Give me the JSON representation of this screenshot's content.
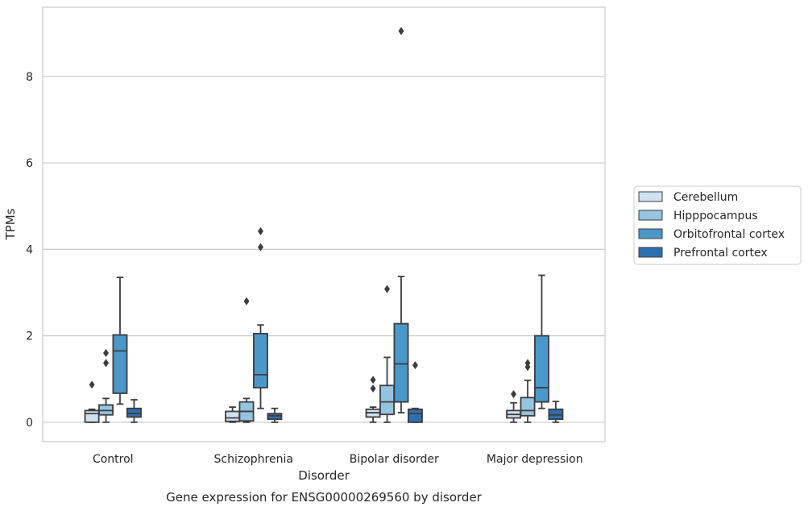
{
  "chart_data": {
    "type": "box",
    "caption": "Gene expression for ENSG00000269560 by disorder",
    "xlabel": "Disorder",
    "ylabel": "TPMs",
    "ylim": [
      -0.45,
      9.6
    ],
    "yticks": [
      0,
      2,
      4,
      6,
      8
    ],
    "grid": "horizontal",
    "legend_position": "right",
    "categories": [
      "Control",
      "Schizophrenia",
      "Bipolar disorder",
      "Major depression"
    ],
    "series": [
      {
        "name": "Cerebellum",
        "color": "#d0e1f2",
        "boxes": [
          {
            "whislo": 0.0,
            "q1": 0.0,
            "med": 0.2,
            "q3": 0.27,
            "whishi": 0.3,
            "fliers": [
              0.87
            ]
          },
          {
            "whislo": 0.0,
            "q1": 0.02,
            "med": 0.1,
            "q3": 0.25,
            "whishi": 0.35,
            "fliers": []
          },
          {
            "whislo": 0.0,
            "q1": 0.12,
            "med": 0.22,
            "q3": 0.3,
            "whishi": 0.35,
            "fliers": [
              0.78,
              0.98
            ]
          },
          {
            "whislo": 0.0,
            "q1": 0.1,
            "med": 0.18,
            "q3": 0.27,
            "whishi": 0.45,
            "fliers": [
              0.65
            ]
          }
        ]
      },
      {
        "name": "Hipppocampus",
        "color": "#94c4df",
        "boxes": [
          {
            "whislo": 0.0,
            "q1": 0.17,
            "med": 0.27,
            "q3": 0.4,
            "whishi": 0.55,
            "fliers": [
              1.37,
              1.6
            ]
          },
          {
            "whislo": 0.0,
            "q1": 0.03,
            "med": 0.25,
            "q3": 0.47,
            "whishi": 0.55,
            "fliers": [
              2.8
            ]
          },
          {
            "whislo": 0.0,
            "q1": 0.18,
            "med": 0.47,
            "q3": 0.85,
            "whishi": 1.5,
            "fliers": [
              3.08
            ]
          },
          {
            "whislo": 0.0,
            "q1": 0.15,
            "med": 0.27,
            "q3": 0.57,
            "whishi": 0.97,
            "fliers": [
              1.28,
              1.37
            ]
          }
        ]
      },
      {
        "name": "Orbitofrontal cortex",
        "color": "#4a98c9",
        "boxes": [
          {
            "whislo": 0.42,
            "q1": 0.67,
            "med": 1.65,
            "q3": 2.02,
            "whishi": 3.35,
            "fliers": []
          },
          {
            "whislo": 0.32,
            "q1": 0.8,
            "med": 1.1,
            "q3": 2.05,
            "whishi": 2.25,
            "fliers": [
              4.05,
              4.42
            ]
          },
          {
            "whislo": 0.22,
            "q1": 0.47,
            "med": 1.35,
            "q3": 2.28,
            "whishi": 3.37,
            "fliers": [
              9.05
            ]
          },
          {
            "whislo": 0.32,
            "q1": 0.47,
            "med": 0.8,
            "q3": 2.0,
            "whishi": 3.4,
            "fliers": []
          }
        ]
      },
      {
        "name": "Prefrontal cortex",
        "color": "#2e6fb0",
        "boxes": [
          {
            "whislo": 0.0,
            "q1": 0.12,
            "med": 0.2,
            "q3": 0.32,
            "whishi": 0.52,
            "fliers": []
          },
          {
            "whislo": 0.0,
            "q1": 0.07,
            "med": 0.15,
            "q3": 0.2,
            "whishi": 0.32,
            "fliers": []
          },
          {
            "whislo": 0.0,
            "q1": 0.0,
            "med": 0.2,
            "q3": 0.3,
            "whishi": 0.32,
            "fliers": [
              1.32
            ]
          },
          {
            "whislo": 0.0,
            "q1": 0.07,
            "med": 0.17,
            "q3": 0.3,
            "whishi": 0.48,
            "fliers": []
          }
        ]
      }
    ]
  }
}
